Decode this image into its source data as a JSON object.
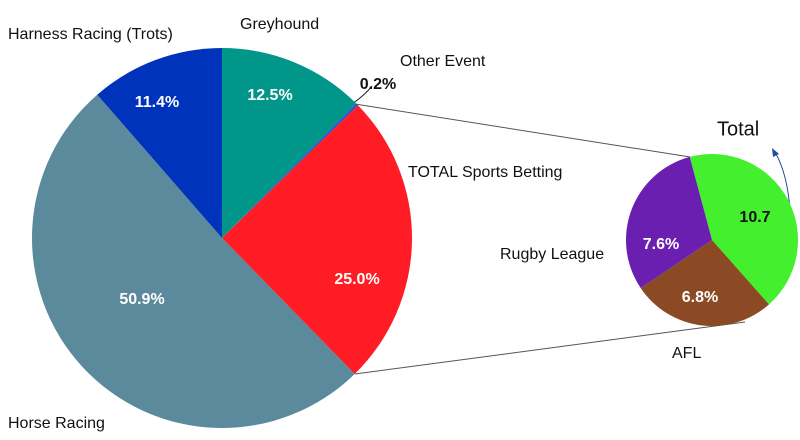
{
  "chart_data": [
    {
      "type": "pie",
      "categories": [
        "Greyhound",
        "Other Event",
        "TOTAL Sports Betting",
        "Horse Racing",
        "Harness Racing (Trots)"
      ],
      "values": [
        12.5,
        0.2,
        25.0,
        50.9,
        11.4
      ],
      "value_labels": [
        "12.5%",
        "0.2%",
        "25.0%",
        "50.9%",
        "11.4%"
      ],
      "colors": [
        "#00968a",
        "#2a4fd0",
        "#ff1c24",
        "#5a8a9c",
        "#0033bb"
      ]
    },
    {
      "type": "pie",
      "categories": [
        "Total",
        "AFL",
        "Rugby League"
      ],
      "values": [
        10.7,
        6.8,
        7.6
      ],
      "value_labels": [
        "10.7",
        "6.8%",
        "7.6%"
      ],
      "colors": [
        "#44f02e",
        "#8b4a23",
        "#6a1fb0"
      ]
    }
  ]
}
